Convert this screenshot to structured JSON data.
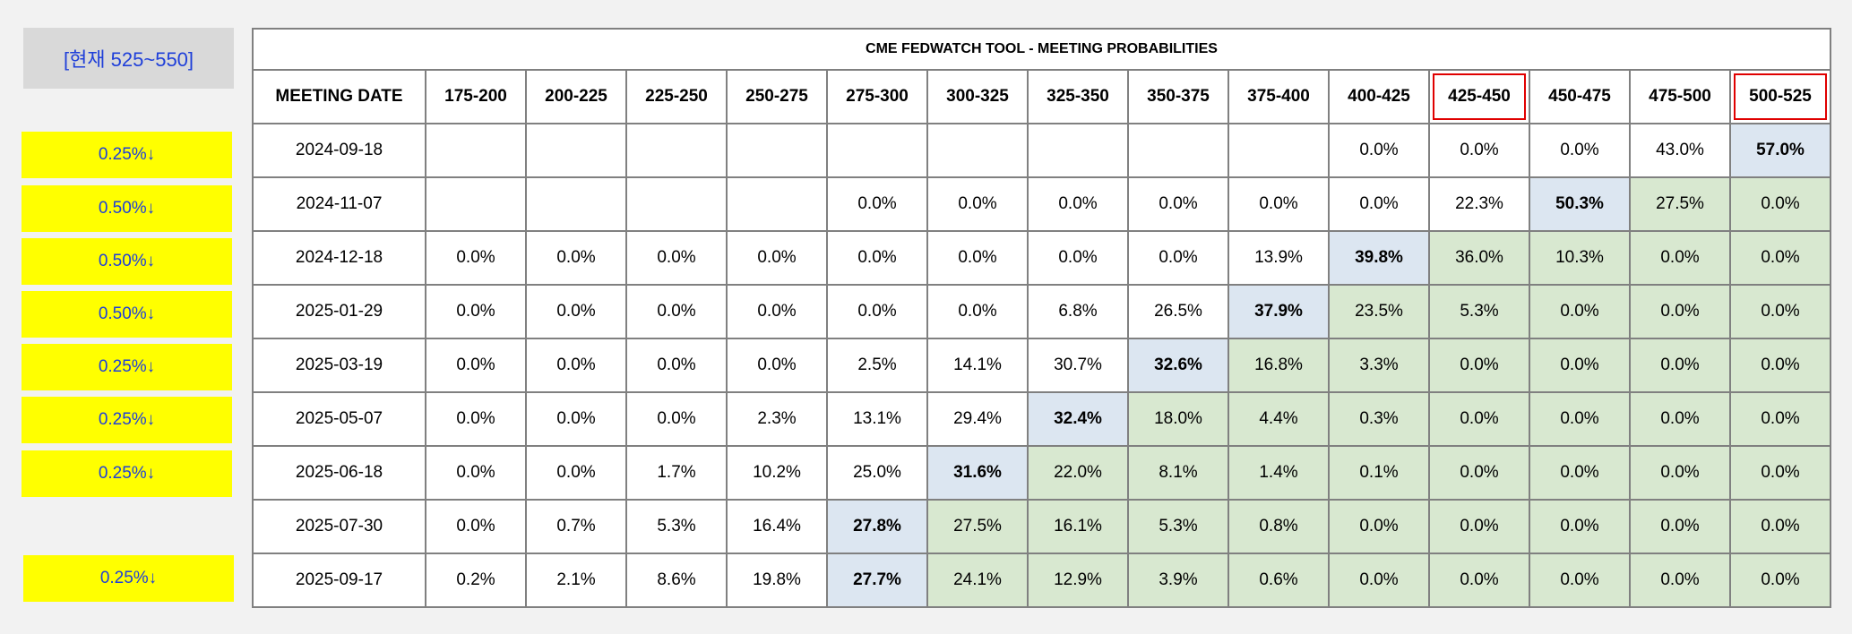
{
  "current": "[현재 525~550]",
  "cuts": [
    "0.25%↓",
    "0.50%↓",
    "0.50%↓",
    "0.50%↓",
    "0.25%↓",
    "0.25%↓",
    "0.25%↓",
    "0.25%↓"
  ],
  "table": {
    "title": "CME FEDWATCH TOOL - MEETING PROBABILITIES",
    "date_header": "MEETING DATE",
    "columns": [
      "175-200",
      "200-225",
      "225-250",
      "250-275",
      "275-300",
      "300-325",
      "325-350",
      "350-375",
      "375-400",
      "400-425",
      "425-450",
      "450-475",
      "475-500",
      "500-525"
    ],
    "highlighted_headers": [
      10,
      13
    ],
    "rows": [
      {
        "date": "2024-09-18",
        "values": [
          "",
          "",
          "",
          "",
          "",
          "",
          "",
          "",
          "",
          "0.0%",
          "0.0%",
          "0.0%",
          "43.0%",
          "57.0%"
        ],
        "max": 13,
        "green_from": 14
      },
      {
        "date": "2024-11-07",
        "values": [
          "",
          "",
          "",
          "",
          "0.0%",
          "0.0%",
          "0.0%",
          "0.0%",
          "0.0%",
          "0.0%",
          "22.3%",
          "50.3%",
          "27.5%",
          "0.0%"
        ],
        "max": 11,
        "green_from": 12
      },
      {
        "date": "2024-12-18",
        "values": [
          "0.0%",
          "0.0%",
          "0.0%",
          "0.0%",
          "0.0%",
          "0.0%",
          "0.0%",
          "0.0%",
          "13.9%",
          "39.8%",
          "36.0%",
          "10.3%",
          "0.0%",
          "0.0%"
        ],
        "max": 9,
        "green_from": 10
      },
      {
        "date": "2025-01-29",
        "values": [
          "0.0%",
          "0.0%",
          "0.0%",
          "0.0%",
          "0.0%",
          "0.0%",
          "6.8%",
          "26.5%",
          "37.9%",
          "23.5%",
          "5.3%",
          "0.0%",
          "0.0%",
          "0.0%"
        ],
        "max": 8,
        "green_from": 9
      },
      {
        "date": "2025-03-19",
        "values": [
          "0.0%",
          "0.0%",
          "0.0%",
          "0.0%",
          "2.5%",
          "14.1%",
          "30.7%",
          "32.6%",
          "16.8%",
          "3.3%",
          "0.0%",
          "0.0%",
          "0.0%",
          "0.0%"
        ],
        "max": 7,
        "green_from": 8
      },
      {
        "date": "2025-05-07",
        "values": [
          "0.0%",
          "0.0%",
          "0.0%",
          "2.3%",
          "13.1%",
          "29.4%",
          "32.4%",
          "18.0%",
          "4.4%",
          "0.3%",
          "0.0%",
          "0.0%",
          "0.0%",
          "0.0%"
        ],
        "max": 6,
        "green_from": 7
      },
      {
        "date": "2025-06-18",
        "values": [
          "0.0%",
          "0.0%",
          "1.7%",
          "10.2%",
          "25.0%",
          "31.6%",
          "22.0%",
          "8.1%",
          "1.4%",
          "0.1%",
          "0.0%",
          "0.0%",
          "0.0%",
          "0.0%"
        ],
        "max": 5,
        "green_from": 6
      },
      {
        "date": "2025-07-30",
        "values": [
          "0.0%",
          "0.7%",
          "5.3%",
          "16.4%",
          "27.8%",
          "27.5%",
          "16.1%",
          "5.3%",
          "0.8%",
          "0.0%",
          "0.0%",
          "0.0%",
          "0.0%",
          "0.0%"
        ],
        "max": 4,
        "green_from": 5
      },
      {
        "date": "2025-09-17",
        "values": [
          "0.2%",
          "2.1%",
          "8.6%",
          "19.8%",
          "27.7%",
          "24.1%",
          "12.9%",
          "3.9%",
          "0.6%",
          "0.0%",
          "0.0%",
          "0.0%",
          "0.0%",
          "0.0%"
        ],
        "max": 4,
        "green_from": 5
      }
    ]
  }
}
